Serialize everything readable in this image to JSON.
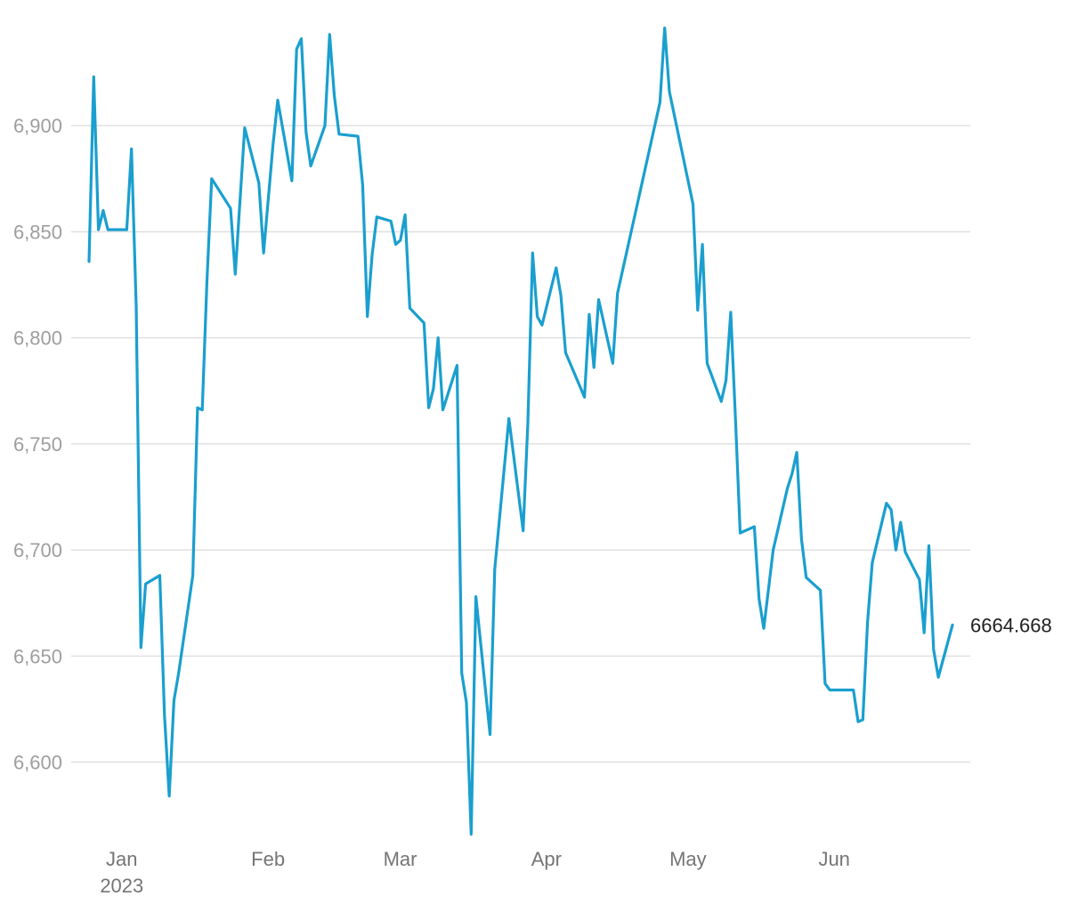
{
  "chart_data": {
    "type": "line",
    "title": "",
    "xlabel": "",
    "ylabel": "",
    "ylim": [
      6565,
      6950
    ],
    "grid": true,
    "y_ticks": [
      {
        "value": 6600,
        "label": "6,600"
      },
      {
        "value": 6650,
        "label": "6,650"
      },
      {
        "value": 6700,
        "label": "6,700"
      },
      {
        "value": 6750,
        "label": "6,750"
      },
      {
        "value": 6800,
        "label": "6,800"
      },
      {
        "value": 6850,
        "label": "6,850"
      },
      {
        "value": 6900,
        "label": "6,900"
      }
    ],
    "x_ticks": [
      {
        "date": "2023-01-01",
        "label": "Jan",
        "sublabel": "2023"
      },
      {
        "date": "2023-02-01",
        "label": "Feb",
        "sublabel": ""
      },
      {
        "date": "2023-03-01",
        "label": "Mar",
        "sublabel": ""
      },
      {
        "date": "2023-04-01",
        "label": "Apr",
        "sublabel": ""
      },
      {
        "date": "2023-05-01",
        "label": "May",
        "sublabel": ""
      },
      {
        "date": "2023-06-01",
        "label": "Jun",
        "sublabel": ""
      }
    ],
    "last_value_label": "6664.668",
    "series": [
      {
        "color": "#1a9fcf",
        "points": [
          [
            "2022-12-26",
            6836
          ],
          [
            "2022-12-27",
            6923
          ],
          [
            "2022-12-28",
            6851
          ],
          [
            "2022-12-29",
            6860
          ],
          [
            "2022-12-30",
            6851
          ],
          [
            "2023-01-03",
            6851
          ],
          [
            "2023-01-04",
            6889
          ],
          [
            "2023-01-05",
            6815
          ],
          [
            "2023-01-06",
            6654
          ],
          [
            "2023-01-07",
            6684
          ],
          [
            "2023-01-10",
            6688
          ],
          [
            "2023-01-11",
            6622
          ],
          [
            "2023-01-12",
            6584
          ],
          [
            "2023-01-13",
            6629
          ],
          [
            "2023-01-14",
            6642
          ],
          [
            "2023-01-17",
            6688
          ],
          [
            "2023-01-18",
            6767
          ],
          [
            "2023-01-19",
            6766
          ],
          [
            "2023-01-20",
            6827
          ],
          [
            "2023-01-21",
            6875
          ],
          [
            "2023-01-25",
            6861
          ],
          [
            "2023-01-26",
            6830
          ],
          [
            "2023-01-28",
            6899
          ],
          [
            "2023-01-31",
            6873
          ],
          [
            "2023-02-01",
            6840
          ],
          [
            "2023-02-03",
            6891
          ],
          [
            "2023-02-04",
            6912
          ],
          [
            "2023-02-07",
            6874
          ],
          [
            "2023-02-08",
            6936
          ],
          [
            "2023-02-09",
            6941
          ],
          [
            "2023-02-10",
            6897
          ],
          [
            "2023-02-11",
            6881
          ],
          [
            "2023-02-14",
            6900
          ],
          [
            "2023-02-15",
            6943
          ],
          [
            "2023-02-16",
            6914
          ],
          [
            "2023-02-17",
            6896
          ],
          [
            "2023-02-21",
            6895
          ],
          [
            "2023-02-22",
            6872
          ],
          [
            "2023-02-23",
            6810
          ],
          [
            "2023-02-24",
            6839
          ],
          [
            "2023-02-25",
            6857
          ],
          [
            "2023-02-28",
            6855
          ],
          [
            "2023-03-01",
            6844
          ],
          [
            "2023-03-02",
            6846
          ],
          [
            "2023-03-03",
            6858
          ],
          [
            "2023-03-04",
            6814
          ],
          [
            "2023-03-07",
            6807
          ],
          [
            "2023-03-08",
            6767
          ],
          [
            "2023-03-09",
            6776
          ],
          [
            "2023-03-10",
            6800
          ],
          [
            "2023-03-11",
            6766
          ],
          [
            "2023-03-14",
            6787
          ],
          [
            "2023-03-15",
            6642
          ],
          [
            "2023-03-16",
            6628
          ],
          [
            "2023-03-17",
            6566
          ],
          [
            "2023-03-18",
            6678
          ],
          [
            "2023-03-21",
            6613
          ],
          [
            "2023-03-22",
            6691
          ],
          [
            "2023-03-25",
            6762
          ],
          [
            "2023-03-28",
            6709
          ],
          [
            "2023-03-29",
            6760
          ],
          [
            "2023-03-30",
            6840
          ],
          [
            "2023-03-31",
            6810
          ],
          [
            "2023-04-01",
            6806
          ],
          [
            "2023-04-04",
            6833
          ],
          [
            "2023-04-05",
            6820
          ],
          [
            "2023-04-06",
            6793
          ],
          [
            "2023-04-10",
            6772
          ],
          [
            "2023-04-11",
            6811
          ],
          [
            "2023-04-12",
            6786
          ],
          [
            "2023-04-13",
            6818
          ],
          [
            "2023-04-16",
            6788
          ],
          [
            "2023-04-17",
            6821
          ],
          [
            "2023-04-26",
            6911
          ],
          [
            "2023-04-27",
            6946
          ],
          [
            "2023-04-28",
            6916
          ],
          [
            "2023-05-03",
            6863
          ],
          [
            "2023-05-04",
            6813
          ],
          [
            "2023-05-05",
            6844
          ],
          [
            "2023-05-06",
            6788
          ],
          [
            "2023-05-09",
            6770
          ],
          [
            "2023-05-10",
            6780
          ],
          [
            "2023-05-11",
            6812
          ],
          [
            "2023-05-12",
            6762
          ],
          [
            "2023-05-13",
            6708
          ],
          [
            "2023-05-16",
            6711
          ],
          [
            "2023-05-17",
            6677
          ],
          [
            "2023-05-18",
            6663
          ],
          [
            "2023-05-20",
            6700
          ],
          [
            "2023-05-23",
            6729
          ],
          [
            "2023-05-24",
            6736
          ],
          [
            "2023-05-25",
            6746
          ],
          [
            "2023-05-26",
            6705
          ],
          [
            "2023-05-27",
            6687
          ],
          [
            "2023-05-30",
            6681
          ],
          [
            "2023-05-31",
            6637
          ],
          [
            "2023-06-01",
            6634
          ],
          [
            "2023-06-06",
            6634
          ],
          [
            "2023-06-07",
            6619
          ],
          [
            "2023-06-08",
            6620
          ],
          [
            "2023-06-09",
            6666
          ],
          [
            "2023-06-10",
            6694
          ],
          [
            "2023-06-13",
            6722
          ],
          [
            "2023-06-14",
            6719
          ],
          [
            "2023-06-15",
            6700
          ],
          [
            "2023-06-16",
            6713
          ],
          [
            "2023-06-17",
            6699
          ],
          [
            "2023-06-20",
            6686
          ],
          [
            "2023-06-21",
            6661
          ],
          [
            "2023-06-22",
            6702
          ],
          [
            "2023-06-23",
            6653
          ],
          [
            "2023-06-24",
            6640
          ],
          [
            "2023-06-27",
            6664.668
          ]
        ]
      }
    ]
  }
}
